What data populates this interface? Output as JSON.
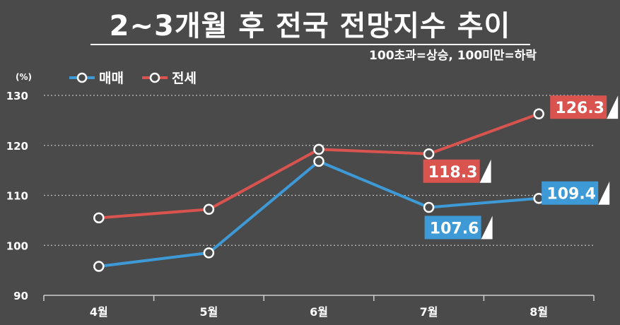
{
  "header": {
    "title": "2~3개월 후 전국 전망지수 추이",
    "subtitle": "100초과=상승, 100미만=하락"
  },
  "chart_data": {
    "type": "line",
    "unit": "(%)",
    "categories": [
      "4월",
      "5월",
      "6월",
      "7월",
      "8월"
    ],
    "ylim": [
      90,
      130
    ],
    "yticks": [
      90,
      100,
      110,
      120,
      130
    ],
    "grid": true,
    "legend_position": "top-left",
    "series": [
      {
        "name": "매매",
        "color": "#3d9ad6",
        "values": [
          95.8,
          98.5,
          116.8,
          107.6,
          109.4
        ],
        "labels": [
          null,
          null,
          null,
          "107.6",
          "109.4"
        ]
      },
      {
        "name": "전세",
        "color": "#d9534f",
        "values": [
          105.5,
          107.2,
          119.2,
          118.3,
          126.3
        ],
        "labels": [
          null,
          null,
          null,
          "118.3",
          "126.3"
        ]
      }
    ]
  }
}
